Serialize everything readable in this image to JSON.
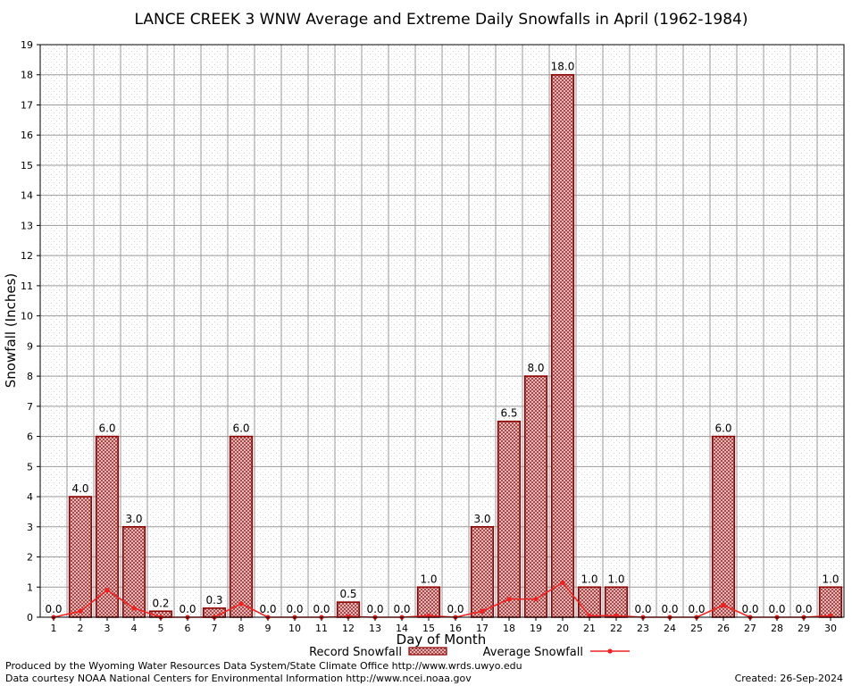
{
  "chart_data": {
    "type": "bar",
    "title": "LANCE CREEK 3 WNW Average and Extreme Daily Snowfalls in April (1962-1984)",
    "xlabel": "Day of Month",
    "ylabel": "Snowfall (Inches)",
    "ylim": [
      0,
      19
    ],
    "yticks": [
      0,
      1,
      2,
      3,
      4,
      5,
      6,
      7,
      8,
      9,
      10,
      11,
      12,
      13,
      14,
      15,
      16,
      17,
      18,
      19
    ],
    "categories": [
      "1",
      "2",
      "3",
      "4",
      "5",
      "6",
      "7",
      "8",
      "9",
      "10",
      "11",
      "12",
      "13",
      "14",
      "15",
      "16",
      "17",
      "18",
      "19",
      "20",
      "21",
      "22",
      "23",
      "24",
      "25",
      "26",
      "27",
      "28",
      "29",
      "30"
    ],
    "series": [
      {
        "name": "Record Snowfall",
        "type": "bar",
        "color": "#8b0000",
        "values": [
          0.0,
          4.0,
          6.0,
          3.0,
          0.2,
          0.0,
          0.3,
          6.0,
          0.0,
          0.0,
          0.0,
          0.5,
          0.0,
          0.0,
          1.0,
          0.0,
          3.0,
          6.5,
          8.0,
          18.0,
          1.0,
          1.0,
          0.0,
          0.0,
          0.0,
          6.0,
          0.0,
          0.0,
          0.0,
          1.0
        ],
        "labels": [
          "0.0",
          "4.0",
          "6.0",
          "3.0",
          "0.2",
          "0.0",
          "0.3",
          "6.0",
          "0.0",
          "0.0",
          "0.0",
          "0.5",
          "0.0",
          "0.0",
          "1.0",
          "0.0",
          "3.0",
          "6.5",
          "8.0",
          "18.0",
          "1.0",
          "1.0",
          "0.0",
          "0.0",
          "0.0",
          "6.0",
          "0.0",
          "0.0",
          "0.0",
          "1.0"
        ]
      },
      {
        "name": "Average Snowfall",
        "type": "line",
        "color": "#ee2222",
        "values": [
          0.0,
          0.2,
          0.9,
          0.3,
          0.0,
          0.0,
          0.0,
          0.45,
          0.0,
          0.0,
          0.0,
          0.02,
          0.0,
          0.0,
          0.05,
          0.0,
          0.2,
          0.6,
          0.6,
          1.15,
          0.05,
          0.05,
          0.0,
          0.0,
          0.0,
          0.4,
          0.0,
          0.0,
          0.0,
          0.05
        ]
      }
    ],
    "grid": true,
    "legend_position": "bottom"
  },
  "footer": {
    "produced_by": "Produced by the Wyoming Water Resources Data System/State Climate Office http://www.wrds.uwyo.edu",
    "data_courtesy": "Data courtesy NOAA National Centers for Environmental Information http://www.ncei.noaa.gov",
    "created": "Created:  26-Sep-2024"
  }
}
